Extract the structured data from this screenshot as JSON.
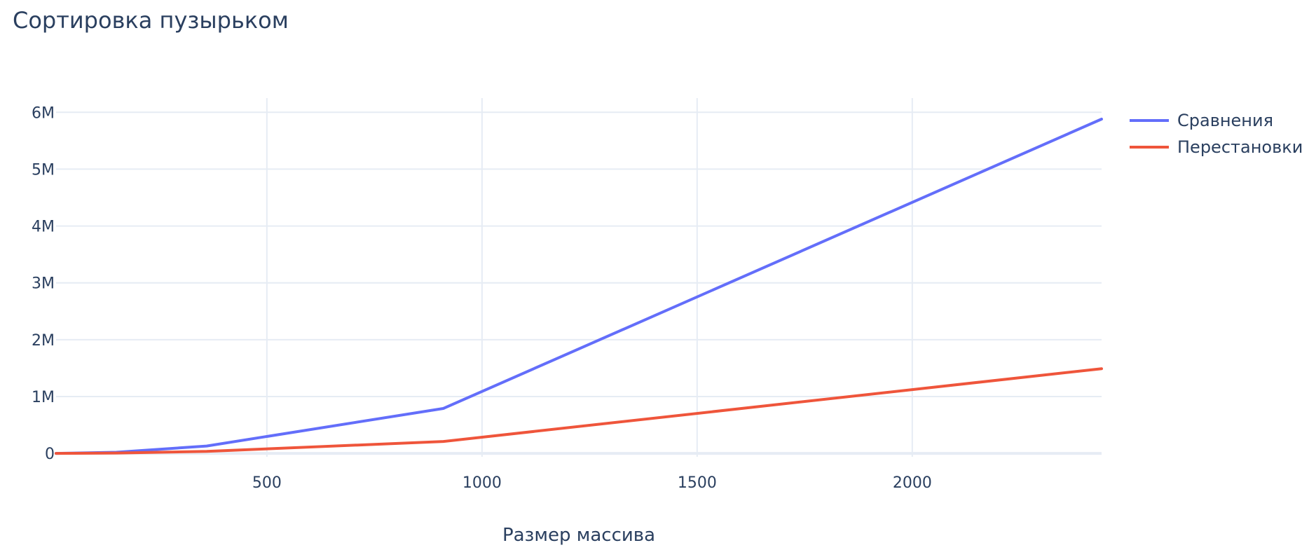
{
  "chart_data": {
    "type": "line",
    "title": "Сортировка пузырьком",
    "xlabel": "Размер массива",
    "ylabel": "",
    "xlim": [
      10,
      2440
    ],
    "ylim": [
      -60000,
      6250000
    ],
    "x_ticks": [
      500,
      1000,
      1500,
      2000
    ],
    "x_tick_labels": [
      "500",
      "1000",
      "1500",
      "2000"
    ],
    "y_ticks": [
      0,
      1000000,
      2000000,
      3000000,
      4000000,
      5000000,
      6000000
    ],
    "y_tick_labels": [
      "0",
      "1M",
      "2M",
      "3M",
      "4M",
      "5M",
      "6M"
    ],
    "grid": true,
    "legend_position": "top-right",
    "series": [
      {
        "name": "Сравнения",
        "color": "#636efa",
        "x": [
          10,
          150,
          360,
          910,
          2440
        ],
        "y": [
          0,
          20000,
          130000,
          790000,
          5880000
        ]
      },
      {
        "name": "Перестановки",
        "color": "#ef553b",
        "x": [
          10,
          150,
          360,
          910,
          2440
        ],
        "y": [
          0,
          6000,
          35000,
          210000,
          1490000
        ]
      }
    ]
  }
}
